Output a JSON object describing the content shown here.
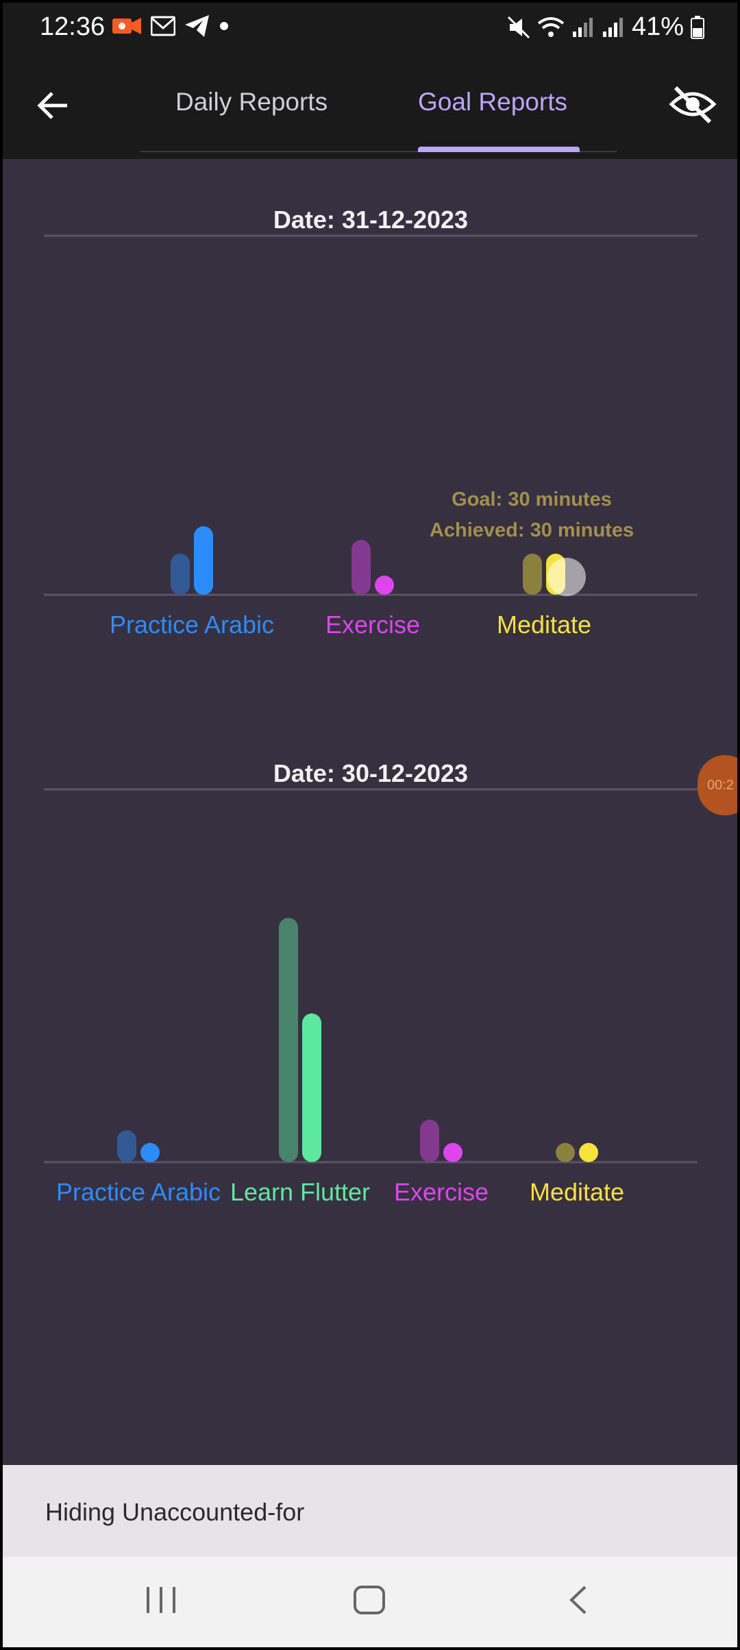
{
  "status_bar": {
    "time": "12:36",
    "battery": "41%"
  },
  "tabs": [
    {
      "label": "Daily Reports"
    },
    {
      "label": "Goal Reports"
    }
  ],
  "active_tab": "Goal Reports",
  "recording_timer": "00:2",
  "colors": {
    "Practice Arabic": "#2b8cff",
    "Learn Flutter": "#5de8a0",
    "Exercise": "#e043f0",
    "Meditate": "#f6e23a"
  },
  "chart_data": [
    {
      "type": "bar",
      "title": "Date: 31-12-2023",
      "categories": [
        "Practice Arabic",
        "Exercise",
        "Meditate"
      ],
      "series": [
        {
          "name": "Goal",
          "values": [
            30,
            40,
            30
          ]
        },
        {
          "name": "Achieved",
          "values": [
            50,
            10,
            30
          ]
        }
      ],
      "tooltip": {
        "category": "Meditate",
        "goal": "Goal:  30 minutes",
        "achieved": "Achieved:  30 minutes"
      }
    },
    {
      "type": "bar",
      "title": "Date: 30-12-2023",
      "categories": [
        "Practice Arabic",
        "Learn Flutter",
        "Exercise",
        "Meditate"
      ],
      "series": [
        {
          "name": "Goal",
          "values": [
            30,
            230,
            40,
            15
          ]
        },
        {
          "name": "Achieved",
          "values": [
            15,
            140,
            10,
            15
          ]
        }
      ]
    }
  ],
  "bottom_panel": {
    "text": "Hiding Unaccounted-for"
  }
}
